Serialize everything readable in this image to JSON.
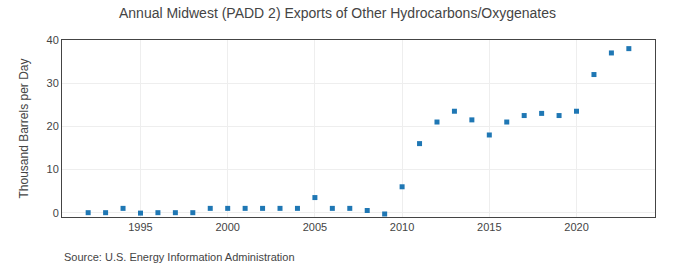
{
  "chart_data": {
    "type": "scatter",
    "title": "Annual Midwest (PADD 2) Exports of Other Hydrocarbons/Oxygenates",
    "ylabel": "Thousand Barrels per Day",
    "annotations": [
      "Source: U.S. Energy Information Administration"
    ],
    "x": [
      1992,
      1993,
      1994,
      1995,
      1996,
      1997,
      1998,
      1999,
      2000,
      2001,
      2002,
      2003,
      2004,
      2005,
      2006,
      2007,
      2008,
      2009,
      2010,
      2011,
      2012,
      2013,
      2014,
      2015,
      2016,
      2017,
      2018,
      2019,
      2020,
      2021,
      2022,
      2023
    ],
    "values": [
      0.0,
      0.0,
      1.0,
      -0.1,
      0.0,
      0.0,
      0.0,
      1.0,
      1.0,
      1.0,
      1.0,
      1.0,
      1.0,
      3.5,
      1.0,
      1.0,
      0.5,
      -0.3,
      6.0,
      16.0,
      21.0,
      23.5,
      21.5,
      18.0,
      21.0,
      22.5,
      23.0,
      22.5,
      23.5,
      32.0,
      37.0,
      38.0
    ],
    "xlim": [
      1990.5,
      2024.5
    ],
    "ylim": [
      -1,
      40
    ],
    "xticks": [
      1995,
      2000,
      2005,
      2010,
      2015,
      2020
    ],
    "yticks": [
      0,
      10,
      20,
      30,
      40
    ],
    "grid": true,
    "marker": "square"
  }
}
